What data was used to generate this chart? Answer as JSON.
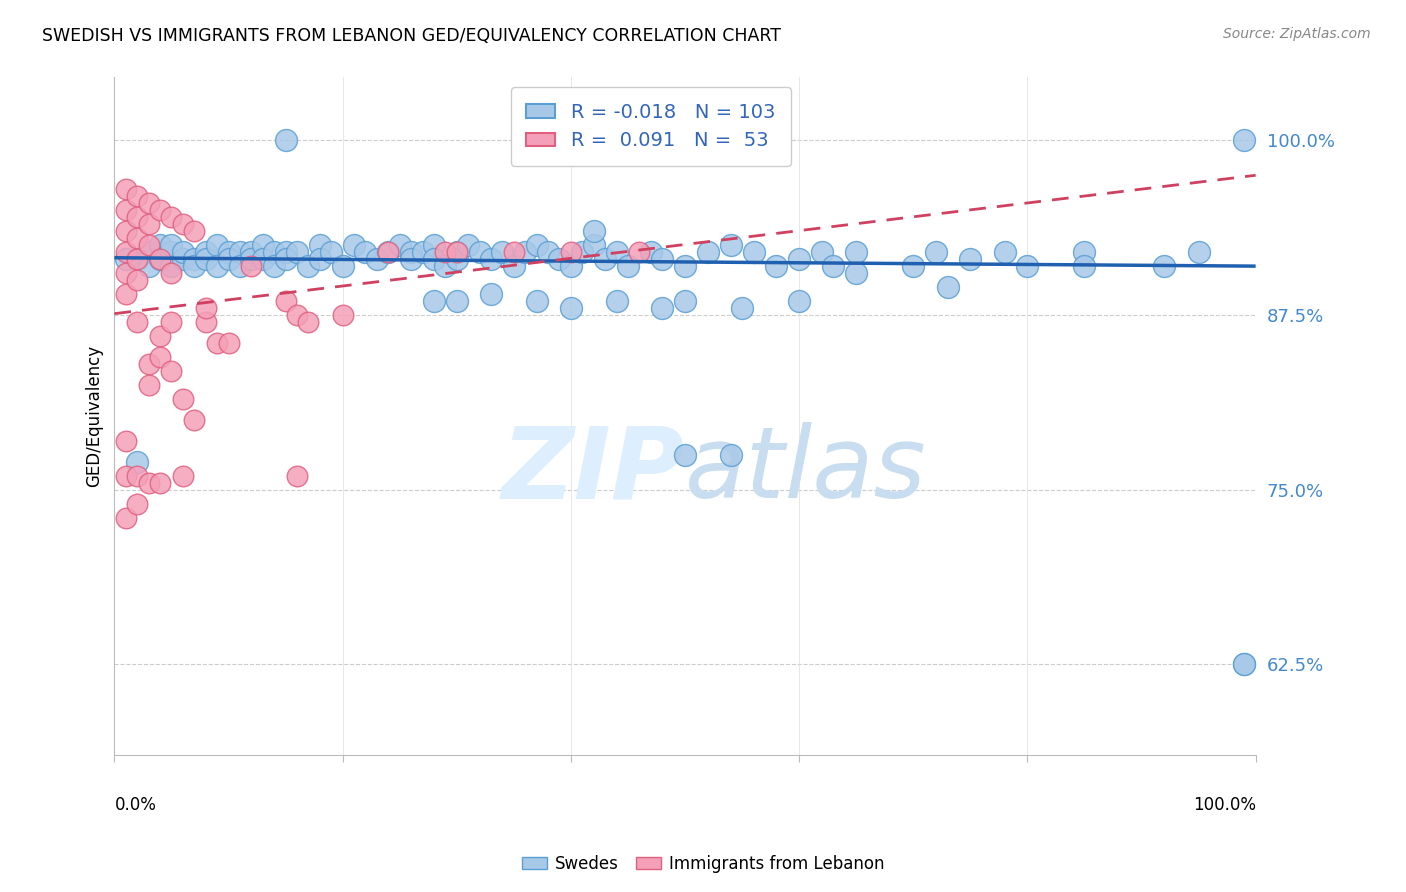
{
  "title": "SWEDISH VS IMMIGRANTS FROM LEBANON GED/EQUIVALENCY CORRELATION CHART",
  "source": "Source: ZipAtlas.com",
  "ylabel": "GED/Equivalency",
  "ytick_values": [
    0.625,
    0.75,
    0.875,
    1.0
  ],
  "xmin": 0.0,
  "xmax": 1.0,
  "ymin": 0.56,
  "ymax": 1.045,
  "blue_R": "-0.018",
  "blue_N": "103",
  "pink_R": "0.091",
  "pink_N": "53",
  "blue_color": "#a8c8e8",
  "blue_edge_color": "#5a9fd4",
  "pink_color": "#f4a0b8",
  "pink_edge_color": "#e06080",
  "blue_line_color": "#2060b0",
  "pink_line_color": "#d04060",
  "watermark_color": "#ddeeff",
  "legend_label_blue": "Swedes",
  "legend_label_pink": "Immigrants from Lebanon",
  "blue_trend_x0": 0.0,
  "blue_trend_x1": 1.0,
  "blue_trend_y0": 0.916,
  "blue_trend_y1": 0.91,
  "pink_trend_x0": 0.0,
  "pink_trend_x1": 1.0,
  "pink_trend_y0": 0.876,
  "pink_trend_y1": 0.975,
  "blue_x": [
    0.01,
    0.02,
    0.03,
    0.03,
    0.04,
    0.04,
    0.05,
    0.05,
    0.05,
    0.06,
    0.06,
    0.07,
    0.07,
    0.08,
    0.08,
    0.09,
    0.09,
    0.1,
    0.1,
    0.11,
    0.11,
    0.12,
    0.12,
    0.13,
    0.13,
    0.14,
    0.14,
    0.15,
    0.15,
    0.16,
    0.17,
    0.18,
    0.18,
    0.19,
    0.2,
    0.21,
    0.22,
    0.23,
    0.24,
    0.25,
    0.26,
    0.26,
    0.27,
    0.28,
    0.28,
    0.29,
    0.3,
    0.3,
    0.31,
    0.32,
    0.33,
    0.34,
    0.35,
    0.36,
    0.37,
    0.38,
    0.39,
    0.4,
    0.41,
    0.42,
    0.43,
    0.44,
    0.45,
    0.47,
    0.48,
    0.5,
    0.52,
    0.54,
    0.56,
    0.58,
    0.6,
    0.62,
    0.63,
    0.65,
    0.7,
    0.72,
    0.75,
    0.78,
    0.8,
    0.85,
    0.28,
    0.3,
    0.33,
    0.37,
    0.4,
    0.44,
    0.48,
    0.5,
    0.55,
    0.6,
    0.02,
    0.5,
    0.54,
    0.65,
    0.73,
    0.85,
    0.92,
    0.95,
    0.99,
    0.99,
    0.99,
    0.15,
    0.42
  ],
  "blue_y": [
    0.915,
    0.915,
    0.92,
    0.91,
    0.925,
    0.915,
    0.92,
    0.91,
    0.925,
    0.915,
    0.92,
    0.915,
    0.91,
    0.92,
    0.915,
    0.925,
    0.91,
    0.92,
    0.915,
    0.92,
    0.91,
    0.92,
    0.915,
    0.925,
    0.915,
    0.92,
    0.91,
    0.92,
    0.915,
    0.92,
    0.91,
    0.925,
    0.915,
    0.92,
    0.91,
    0.925,
    0.92,
    0.915,
    0.92,
    0.925,
    0.92,
    0.915,
    0.92,
    0.925,
    0.915,
    0.91,
    0.92,
    0.915,
    0.925,
    0.92,
    0.915,
    0.92,
    0.91,
    0.92,
    0.925,
    0.92,
    0.915,
    0.91,
    0.92,
    0.925,
    0.915,
    0.92,
    0.91,
    0.92,
    0.915,
    0.91,
    0.92,
    0.925,
    0.92,
    0.91,
    0.915,
    0.92,
    0.91,
    0.92,
    0.91,
    0.92,
    0.915,
    0.92,
    0.91,
    0.92,
    0.885,
    0.885,
    0.89,
    0.885,
    0.88,
    0.885,
    0.88,
    0.885,
    0.88,
    0.885,
    0.77,
    0.775,
    0.775,
    0.905,
    0.895,
    0.91,
    0.91,
    0.92,
    1.0,
    0.625,
    0.625,
    1.0,
    0.935
  ],
  "pink_x": [
    0.01,
    0.01,
    0.01,
    0.01,
    0.01,
    0.01,
    0.02,
    0.02,
    0.02,
    0.02,
    0.02,
    0.02,
    0.03,
    0.03,
    0.03,
    0.03,
    0.03,
    0.04,
    0.04,
    0.04,
    0.04,
    0.05,
    0.05,
    0.05,
    0.05,
    0.06,
    0.06,
    0.07,
    0.07,
    0.08,
    0.09,
    0.1,
    0.12,
    0.15,
    0.16,
    0.17,
    0.2,
    0.24,
    0.29,
    0.3,
    0.35,
    0.4,
    0.46,
    0.01,
    0.01,
    0.01,
    0.02,
    0.02,
    0.03,
    0.04,
    0.06,
    0.08,
    0.16
  ],
  "pink_y": [
    0.965,
    0.95,
    0.935,
    0.92,
    0.905,
    0.89,
    0.96,
    0.945,
    0.93,
    0.915,
    0.9,
    0.87,
    0.955,
    0.94,
    0.925,
    0.84,
    0.825,
    0.95,
    0.86,
    0.915,
    0.845,
    0.945,
    0.905,
    0.87,
    0.835,
    0.94,
    0.815,
    0.935,
    0.8,
    0.87,
    0.855,
    0.855,
    0.91,
    0.885,
    0.875,
    0.87,
    0.875,
    0.92,
    0.92,
    0.92,
    0.92,
    0.92,
    0.92,
    0.785,
    0.76,
    0.73,
    0.76,
    0.74,
    0.755,
    0.755,
    0.76,
    0.88,
    0.76
  ]
}
